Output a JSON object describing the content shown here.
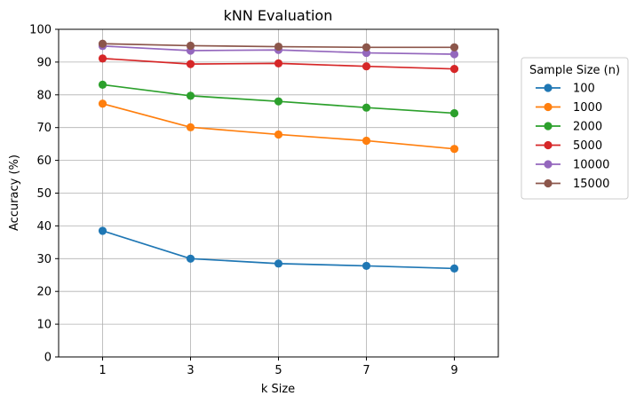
{
  "chart_data": {
    "type": "line",
    "title": "kNN Evaluation",
    "xlabel": "k Size",
    "ylabel": "Accuracy (%)",
    "x": [
      1,
      3,
      5,
      7,
      9
    ],
    "x_ticks": [
      "1",
      "3",
      "5",
      "7",
      "9"
    ],
    "xlim": [
      0,
      10
    ],
    "ylim": [
      0,
      100
    ],
    "y_ticks": [
      "0",
      "10",
      "20",
      "30",
      "40",
      "50",
      "60",
      "70",
      "80",
      "90",
      "100"
    ],
    "grid": true,
    "legend": {
      "title": "Sample Size (n)",
      "placement": "outside right"
    },
    "series": [
      {
        "name": "100",
        "color": "#1f77b4",
        "values": [
          38.5,
          30.0,
          28.5,
          27.8,
          27.0
        ]
      },
      {
        "name": "1000",
        "color": "#ff7f0e",
        "values": [
          77.3,
          70.1,
          67.9,
          66.0,
          63.5
        ]
      },
      {
        "name": "2000",
        "color": "#2ca02c",
        "values": [
          83.1,
          79.7,
          78.0,
          76.1,
          74.4
        ]
      },
      {
        "name": "5000",
        "color": "#d62728",
        "values": [
          91.1,
          89.4,
          89.6,
          88.7,
          87.9
        ]
      },
      {
        "name": "10000",
        "color": "#9467bd",
        "values": [
          94.9,
          93.5,
          93.7,
          92.8,
          92.4
        ]
      },
      {
        "name": "15000",
        "color": "#8c564b",
        "values": [
          95.6,
          95.0,
          94.7,
          94.5,
          94.5
        ]
      }
    ]
  }
}
